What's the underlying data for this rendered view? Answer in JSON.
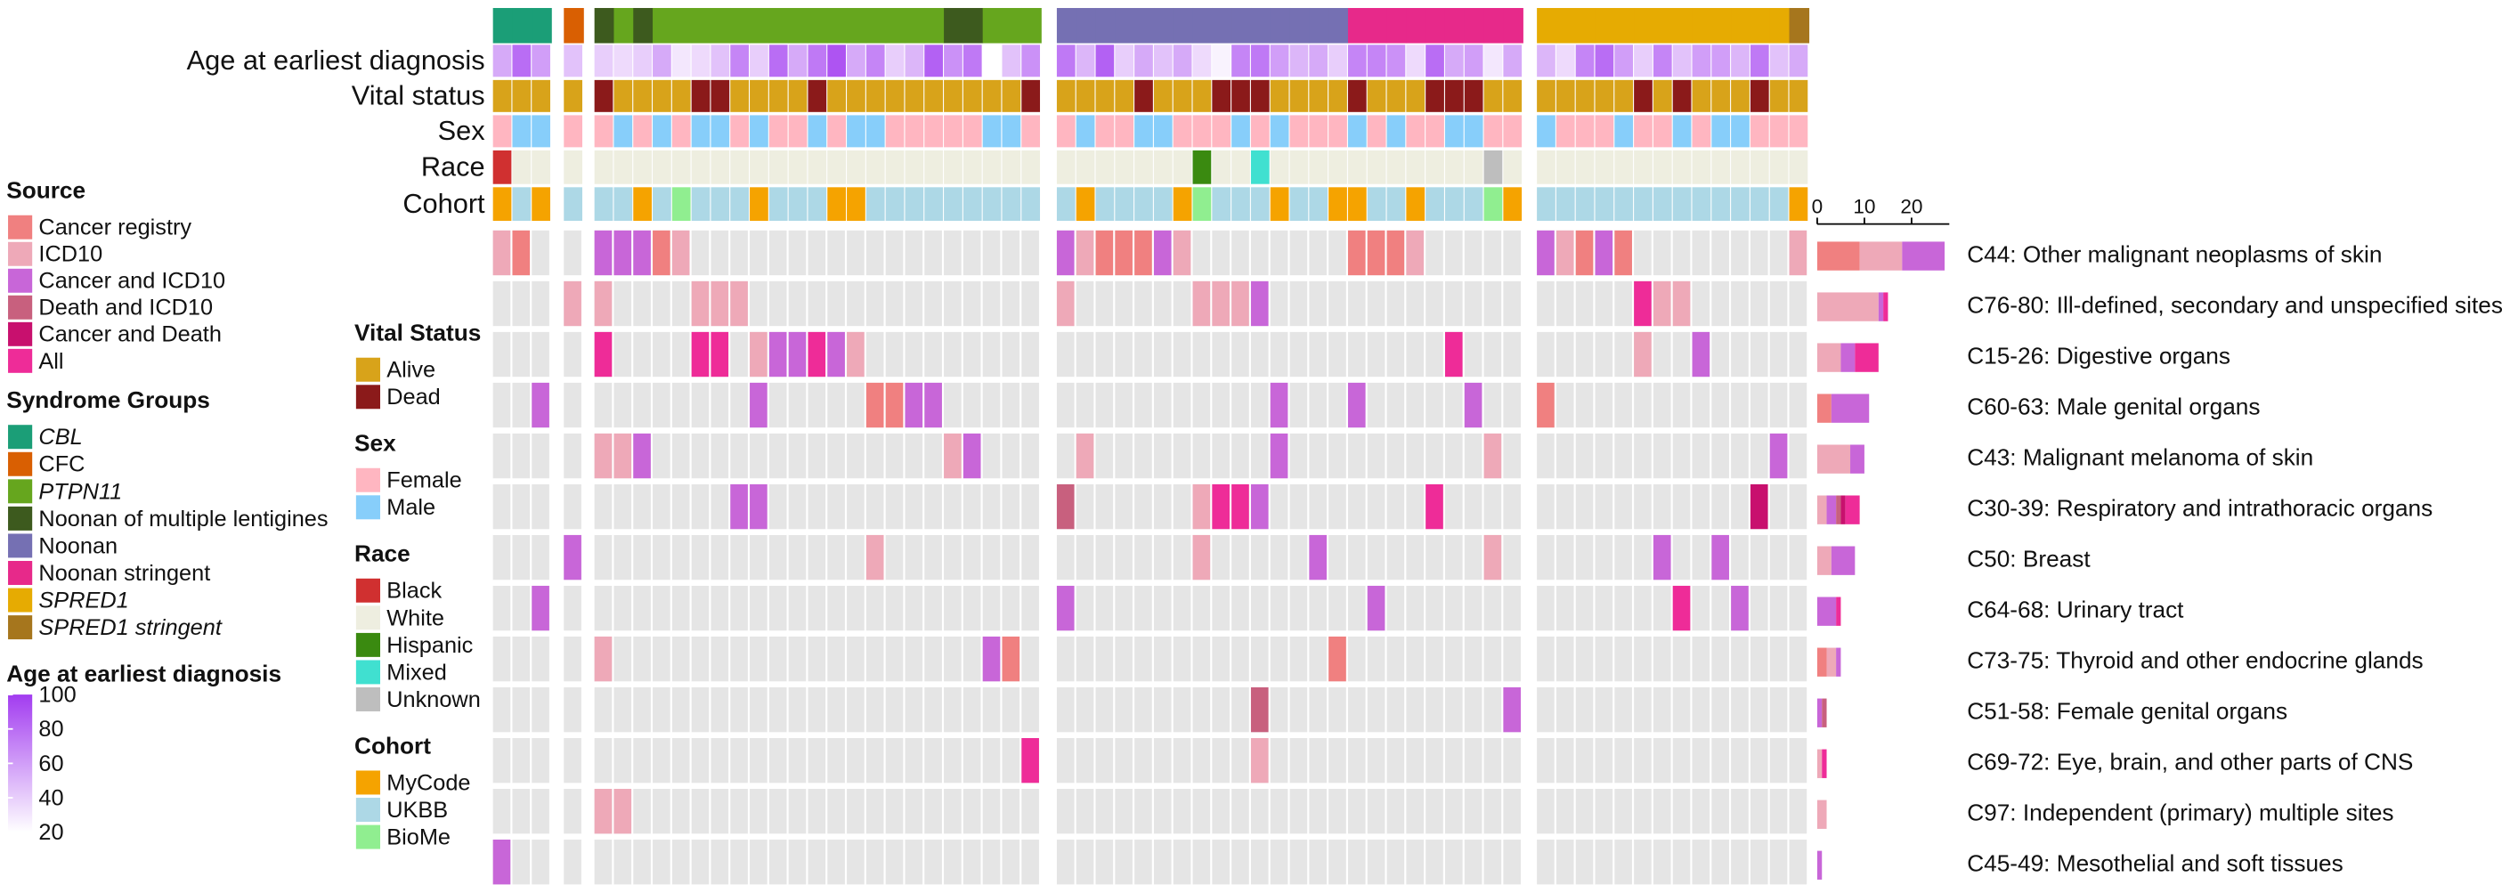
{
  "chart_data": {
    "type": "heatmap",
    "source": {
      "title": "Source",
      "items": [
        {
          "name": "Cancer registry",
          "color": "#f08080"
        },
        {
          "name": "ICD10",
          "color": "#eea9b8"
        },
        {
          "name": "Cancer and ICD10",
          "color": "#c866d8"
        },
        {
          "name": "Death and ICD10",
          "color": "#c8607e"
        },
        {
          "name": "Cancer and Death",
          "color": "#c8106e"
        },
        {
          "name": "All",
          "color": "#ee2c98"
        }
      ]
    },
    "syndrome": {
      "title": "Syndrome Groups",
      "items": [
        {
          "name": "CBL",
          "color": "#1b9e77",
          "italic": true
        },
        {
          "name": "CFC",
          "color": "#d95f02",
          "italic": false
        },
        {
          "name": "PTPN11",
          "color": "#66a61e",
          "italic": true
        },
        {
          "name": "Noonan of multiple lentigines",
          "color": "#3d5a1e",
          "italic": false
        },
        {
          "name": "Noonan",
          "color": "#7570b3",
          "italic": false
        },
        {
          "name": "Noonan stringent",
          "color": "#e7298a",
          "italic": false
        },
        {
          "name": "SPRED1",
          "color": "#e6ab02",
          "italic": true
        },
        {
          "name": "SPRED1 stringent",
          "color": "#a6761d",
          "italic": true
        }
      ],
      "values": [
        0,
        0,
        0,
        1,
        3,
        2,
        3,
        2,
        2,
        2,
        2,
        2,
        2,
        2,
        2,
        2,
        2,
        2,
        2,
        2,
        2,
        2,
        3,
        3,
        2,
        2,
        2,
        4,
        4,
        4,
        4,
        4,
        4,
        4,
        4,
        4,
        4,
        4,
        4,
        4,
        4,
        4,
        5,
        5,
        5,
        5,
        5,
        5,
        5,
        5,
        5,
        6,
        6,
        6,
        6,
        6,
        6,
        6,
        6,
        6,
        6,
        6,
        6,
        6,
        7
      ]
    },
    "tracks": [
      {
        "name": "Age at earliest diagnosis",
        "legend_title": "Age at earliest diagnosis",
        "colors": [
          "#ffffff",
          "#a23cf0"
        ],
        "lim": [
          20,
          100
        ],
        "ticks": [
          20,
          40,
          60,
          80,
          100
        ],
        "values": [
          55,
          80,
          60,
          45,
          40,
          35,
          40,
          55,
          30,
          35,
          45,
          70,
          40,
          80,
          55,
          75,
          90,
          55,
          70,
          40,
          50,
          85,
          65,
          75,
          20,
          45,
          65,
          75,
          50,
          85,
          40,
          55,
          45,
          55,
          35,
          25,
          70,
          75,
          60,
          50,
          55,
          40,
          70,
          70,
          65,
          35,
          80,
          55,
          60,
          30,
          55,
          50,
          35,
          70,
          80,
          60,
          40,
          70,
          45,
          60,
          60,
          50,
          75,
          45,
          55
        ]
      },
      {
        "name": "Vital status",
        "legend_title": "Vital Status",
        "items": [
          {
            "name": "Alive",
            "color": "#d8a31a"
          },
          {
            "name": "Dead",
            "color": "#8b1a1a"
          }
        ],
        "values": [
          0,
          0,
          0,
          0,
          1,
          0,
          0,
          0,
          0,
          1,
          1,
          0,
          0,
          0,
          0,
          1,
          0,
          0,
          0,
          0,
          0,
          0,
          0,
          0,
          0,
          0,
          1,
          0,
          0,
          0,
          0,
          1,
          0,
          0,
          0,
          1,
          1,
          1,
          0,
          0,
          0,
          0,
          1,
          0,
          0,
          0,
          1,
          1,
          1,
          0,
          0,
          0,
          0,
          0,
          0,
          0,
          1,
          0,
          1,
          0,
          0,
          0,
          1,
          0,
          0
        ]
      },
      {
        "name": "Sex",
        "legend_title": "Sex",
        "items": [
          {
            "name": "Female",
            "color": "#ffb6c1"
          },
          {
            "name": "Male",
            "color": "#87cefa"
          }
        ],
        "values": [
          0,
          1,
          1,
          0,
          0,
          1,
          0,
          1,
          0,
          1,
          1,
          0,
          1,
          0,
          0,
          1,
          0,
          1,
          1,
          0,
          0,
          0,
          0,
          0,
          1,
          1,
          0,
          0,
          1,
          0,
          0,
          1,
          1,
          0,
          0,
          0,
          1,
          0,
          1,
          0,
          0,
          0,
          1,
          0,
          1,
          0,
          0,
          1,
          1,
          0,
          0,
          1,
          0,
          0,
          0,
          1,
          0,
          0,
          1,
          0,
          1,
          1,
          0,
          0,
          0
        ]
      },
      {
        "name": "Race",
        "legend_title": "Race",
        "items": [
          {
            "name": "Black",
            "color": "#d03030"
          },
          {
            "name": "White",
            "color": "#eeeee0"
          },
          {
            "name": "Hispanic",
            "color": "#3a8a10"
          },
          {
            "name": "Mixed",
            "color": "#40e0d0"
          },
          {
            "name": "Unknown",
            "color": "#bebebe"
          }
        ],
        "values": [
          0,
          1,
          1,
          1,
          1,
          1,
          1,
          1,
          1,
          1,
          1,
          1,
          1,
          1,
          1,
          1,
          1,
          1,
          1,
          1,
          1,
          1,
          1,
          1,
          1,
          1,
          1,
          1,
          1,
          1,
          1,
          1,
          1,
          1,
          2,
          1,
          1,
          3,
          1,
          1,
          1,
          1,
          1,
          1,
          1,
          1,
          1,
          1,
          1,
          4,
          1,
          1,
          1,
          1,
          1,
          1,
          1,
          1,
          1,
          1,
          1,
          1,
          1,
          1,
          1
        ]
      },
      {
        "name": "Cohort",
        "legend_title": "Cohort",
        "items": [
          {
            "name": "MyCode",
            "color": "#f5a300"
          },
          {
            "name": "UKBB",
            "color": "#add8e6"
          },
          {
            "name": "BioMe",
            "color": "#90ee90"
          }
        ],
        "values": [
          0,
          1,
          0,
          1,
          1,
          1,
          0,
          1,
          2,
          1,
          1,
          1,
          0,
          1,
          1,
          1,
          0,
          0,
          1,
          1,
          1,
          1,
          1,
          1,
          1,
          1,
          1,
          1,
          0,
          1,
          1,
          1,
          1,
          0,
          2,
          1,
          1,
          1,
          0,
          1,
          1,
          0,
          0,
          1,
          1,
          0,
          1,
          1,
          1,
          2,
          0,
          1,
          1,
          1,
          1,
          1,
          1,
          1,
          1,
          1,
          1,
          1,
          1,
          1,
          0
        ]
      }
    ],
    "rows": [
      {
        "name": "C44: Other malignant neoplasms of skin",
        "cells": [
          [
            0,
            1
          ],
          [
            1,
            0
          ],
          [
            4,
            2
          ],
          [
            5,
            2
          ],
          [
            6,
            2
          ],
          [
            7,
            0
          ],
          [
            8,
            1
          ],
          [
            27,
            2
          ],
          [
            28,
            1
          ],
          [
            29,
            0
          ],
          [
            30,
            0
          ],
          [
            31,
            0
          ],
          [
            32,
            2
          ],
          [
            33,
            1
          ],
          [
            42,
            0
          ],
          [
            43,
            0
          ],
          [
            44,
            0
          ],
          [
            45,
            1
          ],
          [
            51,
            2
          ],
          [
            52,
            1
          ],
          [
            53,
            0
          ],
          [
            54,
            2
          ],
          [
            55,
            0
          ],
          [
            64,
            1
          ]
        ],
        "counts": [
          9,
          9,
          9,
          0,
          0,
          0
        ]
      },
      {
        "name": "C76-80: Ill-defined, secondary and unspecified sites",
        "cells": [
          [
            3,
            1
          ],
          [
            4,
            1
          ],
          [
            9,
            1
          ],
          [
            10,
            1
          ],
          [
            11,
            1
          ],
          [
            27,
            1
          ],
          [
            34,
            1
          ],
          [
            35,
            1
          ],
          [
            36,
            1
          ],
          [
            37,
            2
          ],
          [
            56,
            5
          ],
          [
            57,
            1
          ],
          [
            58,
            1
          ]
        ],
        "counts": [
          0,
          13,
          1,
          0,
          0,
          1
        ]
      },
      {
        "name": "C15-26: Digestive organs",
        "cells": [
          [
            4,
            5
          ],
          [
            9,
            5
          ],
          [
            10,
            5
          ],
          [
            12,
            1
          ],
          [
            13,
            2
          ],
          [
            14,
            2
          ],
          [
            15,
            5
          ],
          [
            16,
            2
          ],
          [
            17,
            1
          ],
          [
            47,
            5
          ],
          [
            56,
            1
          ],
          [
            59,
            2
          ]
        ],
        "counts": [
          0,
          5,
          3,
          0,
          0,
          5
        ]
      },
      {
        "name": "C60-63: Male genital organs",
        "cells": [
          [
            2,
            2
          ],
          [
            12,
            2
          ],
          [
            18,
            0
          ],
          [
            19,
            0
          ],
          [
            20,
            2
          ],
          [
            21,
            2
          ],
          [
            38,
            2
          ],
          [
            42,
            2
          ],
          [
            48,
            2
          ],
          [
            51,
            0
          ]
        ],
        "counts": [
          3,
          0,
          8,
          0,
          0,
          0
        ]
      },
      {
        "name": "C43: Malignant melanoma of skin",
        "cells": [
          [
            4,
            1
          ],
          [
            5,
            1
          ],
          [
            6,
            2
          ],
          [
            22,
            1
          ],
          [
            23,
            2
          ],
          [
            28,
            1
          ],
          [
            38,
            2
          ],
          [
            49,
            1
          ],
          [
            63,
            2
          ]
        ],
        "counts": [
          0,
          7,
          3,
          0,
          0,
          0
        ]
      },
      {
        "name": "C30-39: Respiratory and intrathoracic organs",
        "cells": [
          [
            11,
            2
          ],
          [
            12,
            2
          ],
          [
            27,
            3
          ],
          [
            34,
            1
          ],
          [
            35,
            5
          ],
          [
            36,
            5
          ],
          [
            37,
            2
          ],
          [
            46,
            5
          ],
          [
            62,
            4
          ]
        ],
        "counts": [
          0,
          2,
          2,
          1,
          1,
          3
        ]
      },
      {
        "name": "C50: Breast",
        "cells": [
          [
            3,
            2
          ],
          [
            18,
            1
          ],
          [
            34,
            1
          ],
          [
            40,
            2
          ],
          [
            49,
            1
          ],
          [
            57,
            2
          ],
          [
            60,
            2
          ]
        ],
        "counts": [
          0,
          3,
          5,
          0,
          0,
          0
        ]
      },
      {
        "name": "C64-68: Urinary tract",
        "cells": [
          [
            2,
            2
          ],
          [
            27,
            2
          ],
          [
            43,
            2
          ],
          [
            58,
            5
          ],
          [
            61,
            2
          ]
        ],
        "counts": [
          0,
          0,
          4,
          0,
          0,
          1
        ]
      },
      {
        "name": "C73-75: Thyroid and other endocrine glands",
        "cells": [
          [
            4,
            1
          ],
          [
            24,
            2
          ],
          [
            25,
            0
          ],
          [
            41,
            0
          ]
        ],
        "counts": [
          2,
          2,
          1,
          0,
          0,
          0
        ]
      },
      {
        "name": "C51-58: Female genital organs",
        "cells": [
          [
            37,
            3
          ],
          [
            50,
            2
          ]
        ],
        "counts": [
          0,
          0,
          1,
          1,
          0,
          0
        ]
      },
      {
        "name": "C69-72: Eye, brain, and other parts of CNS",
        "cells": [
          [
            26,
            5
          ],
          [
            37,
            1
          ]
        ],
        "counts": [
          0,
          1,
          0,
          0,
          0,
          1
        ]
      },
      {
        "name": "C97: Independent (primary) multiple sites",
        "cells": [
          [
            4,
            1
          ],
          [
            5,
            1
          ]
        ],
        "counts": [
          0,
          2,
          0,
          0,
          0,
          0
        ]
      },
      {
        "name": "C45-49: Mesothelial and soft tissues",
        "cells": [
          [
            0,
            2
          ]
        ],
        "counts": [
          0,
          0,
          1,
          0,
          0,
          0
        ]
      }
    ],
    "bar_xlim": [
      0,
      28
    ],
    "bar_xticks": [
      0,
      10,
      20
    ]
  }
}
